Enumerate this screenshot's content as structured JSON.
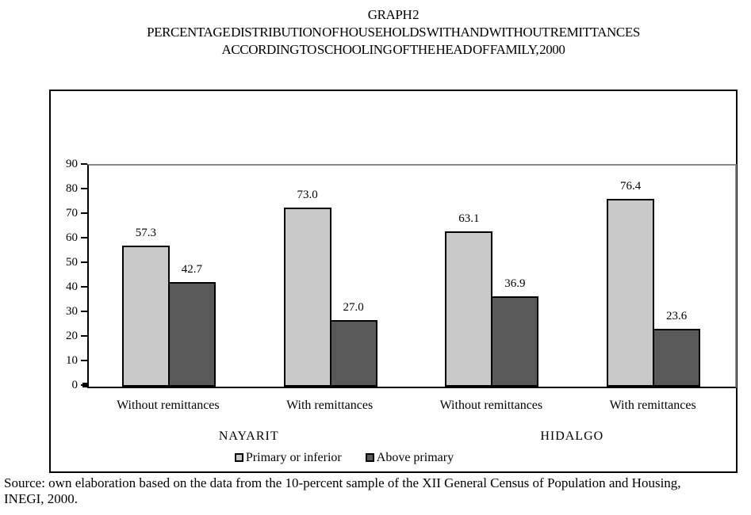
{
  "page": {
    "title_lines": [
      "GRAPH 2",
      "PERCENTAGE DISTRIBUTION OF HOUSEHOLDS WITH AND WITHOUT REMITTANCES",
      "ACCORDING TO SCHOOLING OF THE HEAD OF FAMILY, 2000"
    ],
    "source_text": "Source: own elaboration based on the data from the 10-percent sample of the XII General Census of Population and Housing, INEGI, 2000."
  },
  "chart_data": {
    "type": "bar",
    "title": "GRAPH 2 - PERCENTAGE DISTRIBUTION OF HOUSEHOLDS WITH AND WITHOUT REMITTANCES ACCORDING TO SCHOOLING OF THE HEAD OF FAMILY, 2000",
    "categories": [
      "Without remittances",
      "With remittances",
      "Without remittances",
      "With remittances"
    ],
    "group_labels": [
      {
        "label": "NAYARIT",
        "categories": [
          0,
          1
        ]
      },
      {
        "label": "HIDALGO",
        "categories": [
          2,
          3
        ]
      }
    ],
    "series": [
      {
        "name": "Primary or inferior",
        "color": "#c9c9c9",
        "values": [
          57.3,
          73.0,
          63.1,
          76.4
        ]
      },
      {
        "name": "Above primary",
        "color": "#595959",
        "values": [
          42.7,
          27.0,
          36.9,
          23.6
        ]
      }
    ],
    "ylim": [
      0,
      90
    ],
    "yticks": [
      0,
      10,
      20,
      30,
      40,
      50,
      60,
      70,
      80,
      90
    ],
    "value_label_decimals": 1,
    "legend_position": "bottom",
    "grid": false,
    "colors": {
      "axis": "#000000",
      "plot_border_top_right": "#8a8a8a",
      "bar_border": "#000000"
    }
  }
}
